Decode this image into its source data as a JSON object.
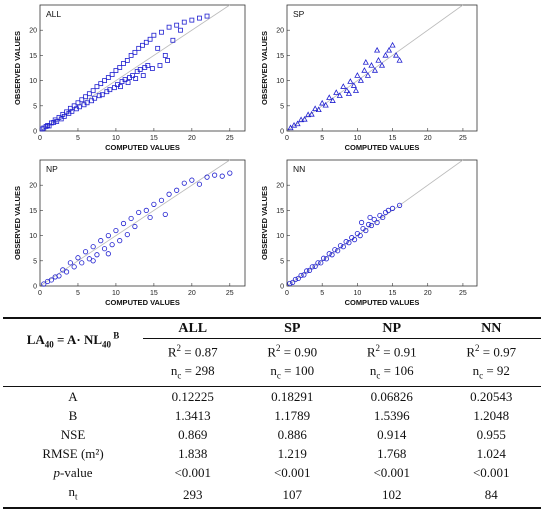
{
  "chart_data": [
    {
      "type": "scatter",
      "title": "ALL",
      "xlabel": "COMPUTED VALUES",
      "ylabel": "OBSERVED VALUES",
      "xlim": [
        0,
        27
      ],
      "ylim": [
        0,
        25
      ],
      "xticks": [
        "0",
        "5",
        "10",
        "15",
        "20",
        "25"
      ],
      "yticks": [
        "0",
        "5",
        "10",
        "15",
        "20"
      ],
      "marker": "square",
      "marker_color": "#2020d0",
      "reference_line": "1:1",
      "points": [
        [
          0.3,
          0.4
        ],
        [
          0.5,
          0.6
        ],
        [
          0.8,
          0.9
        ],
        [
          1.0,
          1.1
        ],
        [
          1.2,
          1.0
        ],
        [
          1.5,
          1.6
        ],
        [
          1.8,
          1.7
        ],
        [
          2.0,
          2.2
        ],
        [
          2.2,
          1.9
        ],
        [
          2.5,
          2.7
        ],
        [
          2.8,
          2.4
        ],
        [
          3.0,
          3.3
        ],
        [
          3.2,
          2.9
        ],
        [
          3.5,
          3.8
        ],
        [
          3.8,
          3.5
        ],
        [
          4.0,
          4.5
        ],
        [
          4.2,
          3.9
        ],
        [
          4.5,
          5.0
        ],
        [
          4.8,
          4.4
        ],
        [
          5.0,
          5.6
        ],
        [
          5.2,
          4.8
        ],
        [
          5.5,
          6.2
        ],
        [
          5.8,
          5.2
        ],
        [
          6.0,
          6.8
        ],
        [
          6.2,
          5.6
        ],
        [
          6.5,
          7.4
        ],
        [
          6.8,
          6.0
        ],
        [
          7.0,
          8.0
        ],
        [
          7.2,
          6.5
        ],
        [
          7.5,
          8.8
        ],
        [
          7.8,
          7.0
        ],
        [
          8.0,
          9.4
        ],
        [
          8.2,
          7.2
        ],
        [
          8.5,
          10.0
        ],
        [
          8.8,
          7.8
        ],
        [
          9.0,
          10.6
        ],
        [
          9.2,
          8.2
        ],
        [
          9.5,
          11.2
        ],
        [
          9.8,
          8.6
        ],
        [
          10.0,
          12.0
        ],
        [
          10.2,
          9.2
        ],
        [
          10.5,
          12.6
        ],
        [
          10.8,
          9.8
        ],
        [
          11.0,
          13.4
        ],
        [
          11.2,
          10.2
        ],
        [
          11.5,
          14.0
        ],
        [
          11.8,
          10.6
        ],
        [
          12.0,
          15.0
        ],
        [
          12.2,
          11.0
        ],
        [
          12.5,
          15.6
        ],
        [
          12.8,
          11.8
        ],
        [
          13.0,
          16.4
        ],
        [
          13.2,
          12.2
        ],
        [
          13.5,
          17.0
        ],
        [
          13.8,
          12.6
        ],
        [
          14.0,
          17.6
        ],
        [
          14.2,
          13.0
        ],
        [
          14.5,
          18.2
        ],
        [
          15.0,
          19.0
        ],
        [
          15.5,
          16.4
        ],
        [
          16.0,
          19.6
        ],
        [
          16.5,
          15.0
        ],
        [
          17.0,
          20.6
        ],
        [
          18.0,
          21.0
        ],
        [
          19.0,
          21.6
        ],
        [
          20.0,
          22.0
        ],
        [
          21.0,
          22.4
        ],
        [
          22.0,
          22.8
        ],
        [
          18.5,
          20.0
        ],
        [
          17.5,
          18.0
        ],
        [
          16.8,
          14.0
        ],
        [
          15.8,
          13.0
        ],
        [
          14.8,
          12.4
        ],
        [
          13.6,
          11.0
        ],
        [
          12.6,
          10.4
        ],
        [
          11.6,
          9.6
        ],
        [
          10.6,
          8.8
        ]
      ]
    },
    {
      "type": "scatter",
      "title": "SP",
      "xlabel": "COMPUTED VALUES",
      "ylabel": "OBSERVED VALUES",
      "xlim": [
        0,
        27
      ],
      "ylim": [
        0,
        25
      ],
      "xticks": [
        "0",
        "5",
        "10",
        "15",
        "20",
        "25"
      ],
      "yticks": [
        "0",
        "5",
        "10",
        "15",
        "20"
      ],
      "marker": "triangle",
      "marker_color": "#2020d0",
      "reference_line": "1:1",
      "points": [
        [
          0.5,
          0.6
        ],
        [
          1.0,
          1.1
        ],
        [
          1.5,
          1.4
        ],
        [
          2.0,
          2.2
        ],
        [
          2.5,
          2.3
        ],
        [
          3.0,
          3.2
        ],
        [
          3.5,
          3.3
        ],
        [
          4.0,
          4.4
        ],
        [
          4.5,
          4.2
        ],
        [
          5.0,
          5.5
        ],
        [
          5.5,
          5.1
        ],
        [
          6.0,
          6.6
        ],
        [
          6.5,
          6.0
        ],
        [
          7.0,
          7.6
        ],
        [
          7.5,
          7.0
        ],
        [
          8.0,
          8.8
        ],
        [
          8.5,
          8.0
        ],
        [
          9.0,
          9.8
        ],
        [
          9.5,
          9.0
        ],
        [
          10.0,
          11.0
        ],
        [
          10.5,
          10.0
        ],
        [
          11.0,
          12.0
        ],
        [
          11.5,
          11.0
        ],
        [
          12.0,
          13.0
        ],
        [
          12.5,
          12.0
        ],
        [
          13.0,
          14.0
        ],
        [
          13.5,
          13.0
        ],
        [
          14.0,
          15.0
        ],
        [
          14.5,
          16.0
        ],
        [
          15.0,
          17.0
        ],
        [
          15.5,
          15.0
        ],
        [
          16.0,
          14.0
        ],
        [
          12.8,
          16.0
        ],
        [
          11.2,
          13.6
        ],
        [
          9.8,
          8.0
        ],
        [
          8.8,
          7.4
        ]
      ]
    },
    {
      "type": "scatter",
      "title": "NP",
      "xlabel": "COMPUTED VALUES",
      "ylabel": "OBSERVED VALUES",
      "xlim": [
        0,
        27
      ],
      "ylim": [
        0,
        25
      ],
      "xticks": [
        "0",
        "5",
        "10",
        "15",
        "20",
        "25"
      ],
      "yticks": [
        "0",
        "5",
        "10",
        "15",
        "20"
      ],
      "marker": "circle",
      "marker_color": "#2020d0",
      "reference_line": "1:1",
      "points": [
        [
          0.5,
          0.4
        ],
        [
          1.0,
          0.9
        ],
        [
          1.5,
          1.2
        ],
        [
          2.0,
          1.8
        ],
        [
          2.5,
          2.0
        ],
        [
          3.0,
          3.2
        ],
        [
          3.5,
          2.8
        ],
        [
          4.0,
          4.6
        ],
        [
          4.5,
          3.8
        ],
        [
          5.0,
          5.6
        ],
        [
          5.5,
          4.6
        ],
        [
          6.0,
          6.8
        ],
        [
          6.5,
          5.4
        ],
        [
          7.0,
          7.8
        ],
        [
          7.5,
          6.2
        ],
        [
          8.0,
          9.0
        ],
        [
          8.5,
          7.4
        ],
        [
          9.0,
          10.0
        ],
        [
          9.5,
          8.2
        ],
        [
          10.0,
          11.0
        ],
        [
          10.5,
          9.0
        ],
        [
          11.0,
          12.4
        ],
        [
          11.5,
          10.2
        ],
        [
          12.0,
          13.4
        ],
        [
          13.0,
          14.6
        ],
        [
          14.0,
          15.0
        ],
        [
          15.0,
          16.2
        ],
        [
          16.0,
          17.0
        ],
        [
          17.0,
          18.2
        ],
        [
          18.0,
          19.0
        ],
        [
          19.0,
          20.4
        ],
        [
          20.0,
          21.0
        ],
        [
          21.0,
          20.2
        ],
        [
          22.0,
          21.6
        ],
        [
          23.0,
          22.0
        ],
        [
          24.0,
          21.8
        ],
        [
          25.0,
          22.4
        ],
        [
          16.5,
          14.2
        ],
        [
          14.5,
          13.6
        ],
        [
          12.5,
          11.8
        ],
        [
          9.0,
          6.4
        ],
        [
          7.0,
          5.0
        ]
      ]
    },
    {
      "type": "scatter",
      "title": "NN",
      "xlabel": "COMPUTED VALUES",
      "ylabel": "OBSERVED VALUES",
      "xlim": [
        0,
        27
      ],
      "ylim": [
        0,
        25
      ],
      "xticks": [
        "0",
        "5",
        "10",
        "15",
        "20",
        "25"
      ],
      "yticks": [
        "0",
        "5",
        "10",
        "15",
        "20"
      ],
      "marker": "circle",
      "marker_color": "#2020d0",
      "reference_line": "1:1",
      "points": [
        [
          0.4,
          0.5
        ],
        [
          0.8,
          0.7
        ],
        [
          1.2,
          1.3
        ],
        [
          1.6,
          1.5
        ],
        [
          2.0,
          2.1
        ],
        [
          2.4,
          2.2
        ],
        [
          2.8,
          3.0
        ],
        [
          3.2,
          3.1
        ],
        [
          3.6,
          3.8
        ],
        [
          4.0,
          3.9
        ],
        [
          4.4,
          4.6
        ],
        [
          4.8,
          4.6
        ],
        [
          5.2,
          5.5
        ],
        [
          5.6,
          5.4
        ],
        [
          6.0,
          6.4
        ],
        [
          6.4,
          6.2
        ],
        [
          6.8,
          7.2
        ],
        [
          7.2,
          7.0
        ],
        [
          7.6,
          8.0
        ],
        [
          8.0,
          7.8
        ],
        [
          8.4,
          8.8
        ],
        [
          8.8,
          8.6
        ],
        [
          9.2,
          9.6
        ],
        [
          9.6,
          9.2
        ],
        [
          10.0,
          10.4
        ],
        [
          10.4,
          10.0
        ],
        [
          10.8,
          11.4
        ],
        [
          11.2,
          11.0
        ],
        [
          11.6,
          12.2
        ],
        [
          12.0,
          12.0
        ],
        [
          12.4,
          13.2
        ],
        [
          12.8,
          12.6
        ],
        [
          13.2,
          14.0
        ],
        [
          13.6,
          13.6
        ],
        [
          14.0,
          14.6
        ],
        [
          14.4,
          15.0
        ],
        [
          15.0,
          15.4
        ],
        [
          16.0,
          16.0
        ],
        [
          10.6,
          12.6
        ],
        [
          11.8,
          13.6
        ]
      ]
    }
  ],
  "table": {
    "equation_main": "LA",
    "equation_sub1": "40",
    "equation_mid": " = A· NL",
    "equation_sub2": "40",
    "equation_sup": " B",
    "columns": [
      "ALL",
      "SP",
      "NP",
      "NN"
    ],
    "r2_label": "R",
    "r2_values": [
      "= 0.87",
      "= 0.90",
      "= 0.91",
      "= 0.97"
    ],
    "nc_label": "n",
    "nc_sub": "c",
    "nc_values": [
      "= 298",
      "= 100",
      "= 106",
      "= 92"
    ],
    "rows": [
      {
        "label": "A",
        "values": [
          "0.12225",
          "0.18291",
          "0.06826",
          "0.20543"
        ]
      },
      {
        "label": "B",
        "values": [
          "1.3413",
          "1.1789",
          "1.5396",
          "1.2048"
        ]
      },
      {
        "label": "NSE",
        "values": [
          "0.869",
          "0.886",
          "0.914",
          "0.955"
        ]
      },
      {
        "label": "RMSE (m²)",
        "values": [
          "1.838",
          "1.219",
          "1.768",
          "1.024"
        ]
      }
    ],
    "pvalue_label_italic": "p",
    "pvalue_label_rest": "-value",
    "pvalue_values": [
      "<0.001",
      "<0.001",
      "<0.001",
      "<0.001"
    ],
    "nt_label": "n",
    "nt_sub": "t",
    "nt_values": [
      "293",
      "107",
      "102",
      "84"
    ]
  }
}
